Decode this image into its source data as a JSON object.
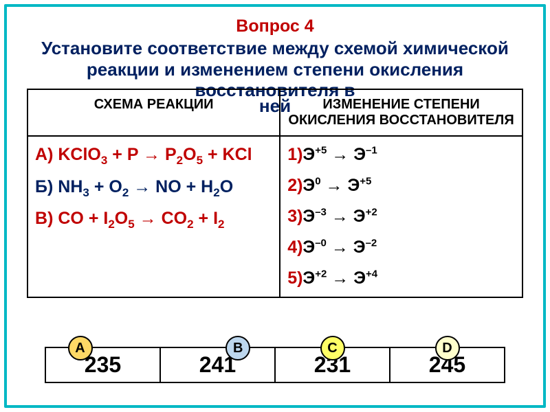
{
  "frame_color": "#00b8c4",
  "accent_red": "#c00000",
  "accent_blue": "#002060",
  "question_label": "Вопрос 4",
  "title": "Установите соответствие между схемой химической реакции и изменением степени окисления восстановителя в ней",
  "title_tail": "ней",
  "table": {
    "header_left": "СХЕМА РЕАКЦИИ",
    "header_right": "ИЗМЕНЕНИЕ СТЕПЕНИ ОКИСЛЕНИЯ ВОССТАНОВИТЕЛЯ",
    "reactions": [
      {
        "label": "А)",
        "formula_html": "KClO<sub>3</sub> + P → P<sub>2</sub>O<sub>5</sub> + KCl",
        "color": "#c00000"
      },
      {
        "label": "Б)",
        "formula_html": "NH<sub>3</sub> + O<sub>2</sub> → NO + H<sub>2</sub>O",
        "color": "#002060"
      },
      {
        "label": "В)",
        "formula_html": "CO + I<sub>2</sub>O<sub>5</sub> → CO<sub>2</sub> + I<sub>2</sub>",
        "color": "#c00000"
      }
    ],
    "options": [
      {
        "num": "1)",
        "lhs_sym": "Э",
        "lhs_sup": "+5",
        "rhs_sym": "Э",
        "rhs_sup": "–1"
      },
      {
        "num": "2)",
        "lhs_sym": "Э",
        "lhs_sup": "0",
        "rhs_sym": "Э",
        "rhs_sup": "+5"
      },
      {
        "num": "3)",
        "lhs_sym": "Э",
        "lhs_sup": "–3",
        "rhs_sym": "Э",
        "rhs_sup": "+2"
      },
      {
        "num": "4)",
        "lhs_sym": "Э",
        "lhs_sup": "–0",
        "rhs_sym": "Э",
        "rhs_sup": "–2"
      },
      {
        "num": "5)",
        "lhs_sym": "Э",
        "lhs_sup": "+2",
        "rhs_sym": "Э",
        "rhs_sup": "+4"
      }
    ]
  },
  "answers": {
    "chip_palette": [
      {
        "letter": "A",
        "bg": "#ffd966",
        "left_pct": 30
      },
      {
        "letter": "B",
        "bg": "#bdd7ee",
        "left_pct": 68
      },
      {
        "letter": "C",
        "bg": "#ffff66",
        "left_pct": 50
      },
      {
        "letter": "D",
        "bg": "#ffffcc",
        "left_pct": 50
      }
    ],
    "values": [
      "235",
      "241",
      "231",
      "245"
    ]
  }
}
